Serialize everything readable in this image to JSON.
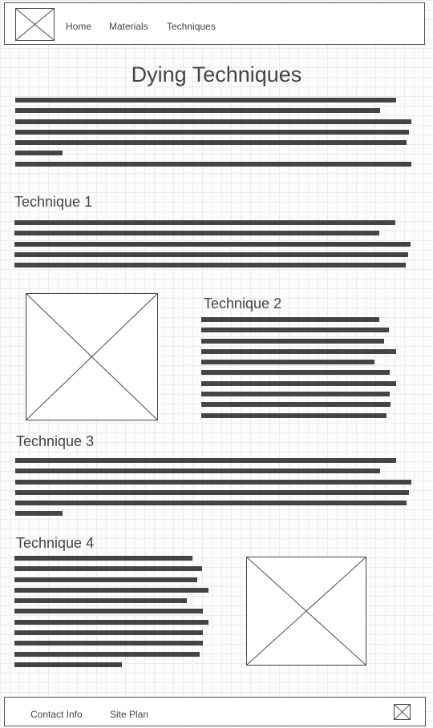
{
  "nav": {
    "links": [
      "Home",
      "Materials",
      "Techniques"
    ]
  },
  "page": {
    "title": "Dying Techniques"
  },
  "sections": [
    {
      "heading": "Technique 1"
    },
    {
      "heading": "Technique 2"
    },
    {
      "heading": "Technique 3"
    },
    {
      "heading": "Technique 4"
    }
  ],
  "footer": {
    "links": [
      "Contact Info",
      "Site Plan"
    ]
  },
  "icons": {
    "logo": "image-placeholder-icon",
    "footer_icon": "image-placeholder-icon"
  },
  "colors": {
    "text": "#444444",
    "grid": "#ececec",
    "background": "#fcfcfc"
  }
}
